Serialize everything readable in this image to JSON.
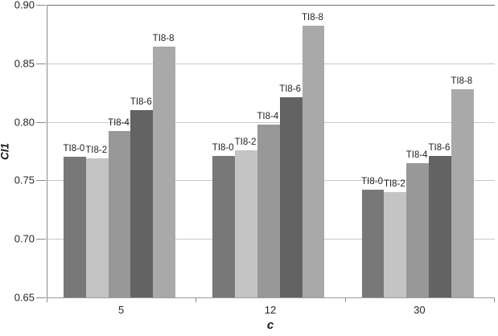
{
  "chart_data": {
    "type": "bar",
    "title": "",
    "xlabel": "c",
    "ylabel": "CI1",
    "categories": [
      "5",
      "12",
      "30"
    ],
    "series": [
      {
        "name": "TI8-0",
        "color": "#787878",
        "values": [
          0.77,
          0.771,
          0.742
        ]
      },
      {
        "name": "TI8-2",
        "color": "#c4c4c4",
        "values": [
          0.769,
          0.776,
          0.74
        ]
      },
      {
        "name": "TI8-4",
        "color": "#989898",
        "values": [
          0.792,
          0.798,
          0.765
        ]
      },
      {
        "name": "TI8-6",
        "color": "#636363",
        "values": [
          0.81,
          0.821,
          0.771
        ]
      },
      {
        "name": "TI8-8",
        "color": "#a9a9a9",
        "values": [
          0.864,
          0.882,
          0.828
        ]
      }
    ],
    "ylim": [
      0.65,
      0.9
    ],
    "ytick_step": 0.05,
    "ytick_labels": [
      "0.65",
      "0.70",
      "0.75",
      "0.80",
      "0.85",
      "0.90"
    ],
    "grid": true,
    "legend": "none",
    "bar_labels": "series-name-above-each-bar",
    "colors": {
      "gridline": "#c9c9c9",
      "axis": "#8a8a8a",
      "text": "#262626"
    }
  }
}
